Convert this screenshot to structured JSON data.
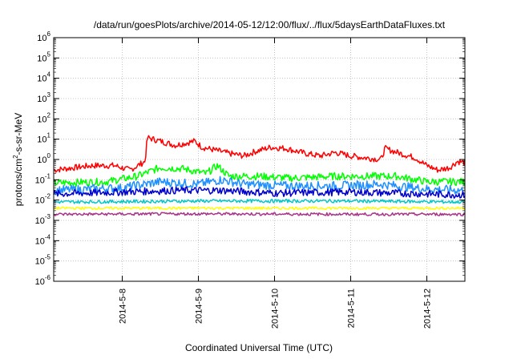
{
  "chart_data": {
    "type": "line",
    "title": "/data/run/goesPlots/archive/2014-05-12/12:00/flux/../flux/5daysEarthDataFluxes.txt",
    "xlabel": "Coordinated Universal Time (UTC)",
    "ylabel": "protons/cm²-s-sr-MeV",
    "y_scale": "log",
    "ylim_exp": [
      -6,
      6
    ],
    "xlim_days": [
      7.1,
      12.5
    ],
    "grid": true,
    "x_ticks": [
      {
        "label": "2014-5-8",
        "day": 8
      },
      {
        "label": "2014-5-9",
        "day": 9
      },
      {
        "label": "2014-5-10",
        "day": 10
      },
      {
        "label": "2014-5-11",
        "day": 11
      },
      {
        "label": "2014-5-12",
        "day": 12
      }
    ],
    "series": [
      {
        "color": "#ff0000",
        "noise_exp": 0.15,
        "anchors": [
          [
            7.1,
            0.3
          ],
          [
            7.6,
            0.5
          ],
          [
            7.9,
            0.5
          ],
          [
            8.1,
            0.3
          ],
          [
            8.3,
            0.8
          ],
          [
            8.33,
            12
          ],
          [
            8.5,
            8
          ],
          [
            8.7,
            5
          ],
          [
            8.95,
            8
          ],
          [
            9.05,
            4
          ],
          [
            9.2,
            3
          ],
          [
            9.4,
            2
          ],
          [
            9.6,
            1.5
          ],
          [
            9.75,
            2.5
          ],
          [
            9.95,
            4
          ],
          [
            10.15,
            3.5
          ],
          [
            10.4,
            2
          ],
          [
            10.6,
            1.5
          ],
          [
            10.8,
            2.2
          ],
          [
            11.0,
            1.5
          ],
          [
            11.2,
            1.2
          ],
          [
            11.4,
            1.0
          ],
          [
            11.45,
            3.5
          ],
          [
            11.65,
            2
          ],
          [
            11.85,
            1.2
          ],
          [
            12.0,
            0.5
          ],
          [
            12.15,
            0.3
          ],
          [
            12.3,
            0.4
          ],
          [
            12.4,
            0.8
          ],
          [
            12.5,
            0.7
          ]
        ]
      },
      {
        "color": "#00ff00",
        "noise_exp": 0.18,
        "anchors": [
          [
            7.1,
            0.07
          ],
          [
            7.8,
            0.08
          ],
          [
            8.2,
            0.15
          ],
          [
            8.5,
            0.4
          ],
          [
            8.8,
            0.35
          ],
          [
            9.1,
            0.2
          ],
          [
            9.25,
            0.5
          ],
          [
            9.4,
            0.15
          ],
          [
            9.8,
            0.15
          ],
          [
            10.2,
            0.12
          ],
          [
            10.8,
            0.15
          ],
          [
            11.3,
            0.15
          ],
          [
            11.6,
            0.15
          ],
          [
            12.0,
            0.08
          ],
          [
            12.5,
            0.08
          ]
        ]
      },
      {
        "color": "#1e90ff",
        "noise_exp": 0.22,
        "anchors": [
          [
            7.1,
            0.03
          ],
          [
            8.0,
            0.04
          ],
          [
            8.5,
            0.08
          ],
          [
            9.0,
            0.06
          ],
          [
            9.3,
            0.1
          ],
          [
            9.6,
            0.06
          ],
          [
            10.2,
            0.05
          ],
          [
            10.8,
            0.05
          ],
          [
            11.4,
            0.06
          ],
          [
            12.0,
            0.035
          ],
          [
            12.5,
            0.03
          ]
        ]
      },
      {
        "color": "#0000cc",
        "noise_exp": 0.18,
        "anchors": [
          [
            7.1,
            0.02
          ],
          [
            8.0,
            0.025
          ],
          [
            8.7,
            0.03
          ],
          [
            9.3,
            0.03
          ],
          [
            10.0,
            0.022
          ],
          [
            11.0,
            0.025
          ],
          [
            12.0,
            0.02
          ],
          [
            12.5,
            0.018
          ]
        ]
      },
      {
        "color": "#00c8c8",
        "noise_exp": 0.08,
        "anchors": [
          [
            7.1,
            0.008
          ],
          [
            9.0,
            0.009
          ],
          [
            11.0,
            0.009
          ],
          [
            12.5,
            0.008
          ]
        ]
      },
      {
        "color": "#ffff00",
        "noise_exp": 0.06,
        "anchors": [
          [
            7.1,
            0.004
          ],
          [
            9.0,
            0.004
          ],
          [
            11.0,
            0.004
          ],
          [
            12.5,
            0.004
          ]
        ]
      },
      {
        "color": "#aa3388",
        "noise_exp": 0.07,
        "anchors": [
          [
            7.1,
            0.002
          ],
          [
            9.0,
            0.0021
          ],
          [
            11.0,
            0.002
          ],
          [
            12.5,
            0.002
          ]
        ]
      }
    ]
  }
}
